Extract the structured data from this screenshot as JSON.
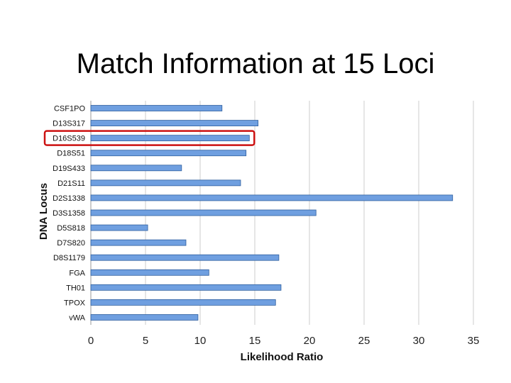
{
  "slide": {
    "title": "Match Information at 15 Loci"
  },
  "chart_data": {
    "type": "bar",
    "orientation": "horizontal",
    "categories": [
      "CSF1PO",
      "D13S317",
      "D16S539",
      "D18S51",
      "D19S433",
      "D21S11",
      "D2S1338",
      "D3S1358",
      "D5S818",
      "D7S820",
      "D8S1179",
      "FGA",
      "TH01",
      "TPOX",
      "vWA"
    ],
    "values": [
      12.0,
      15.3,
      14.5,
      14.2,
      8.3,
      13.7,
      33.1,
      20.6,
      5.2,
      8.7,
      17.2,
      10.8,
      17.4,
      16.9,
      9.8
    ],
    "xlabel": "Likelihood Ratio",
    "ylabel": "DNA Locus",
    "xlim": [
      0,
      35
    ],
    "xticks": [
      "0",
      "5",
      "10",
      "15",
      "20",
      "25",
      "30",
      "35"
    ],
    "grid": "vertical",
    "highlighted_category": "D16S539",
    "colors": {
      "bar": "#6f9fe0",
      "bar_edge": "#2f5f9e",
      "grid": "#cccccc",
      "highlight": "#cc1111"
    }
  }
}
